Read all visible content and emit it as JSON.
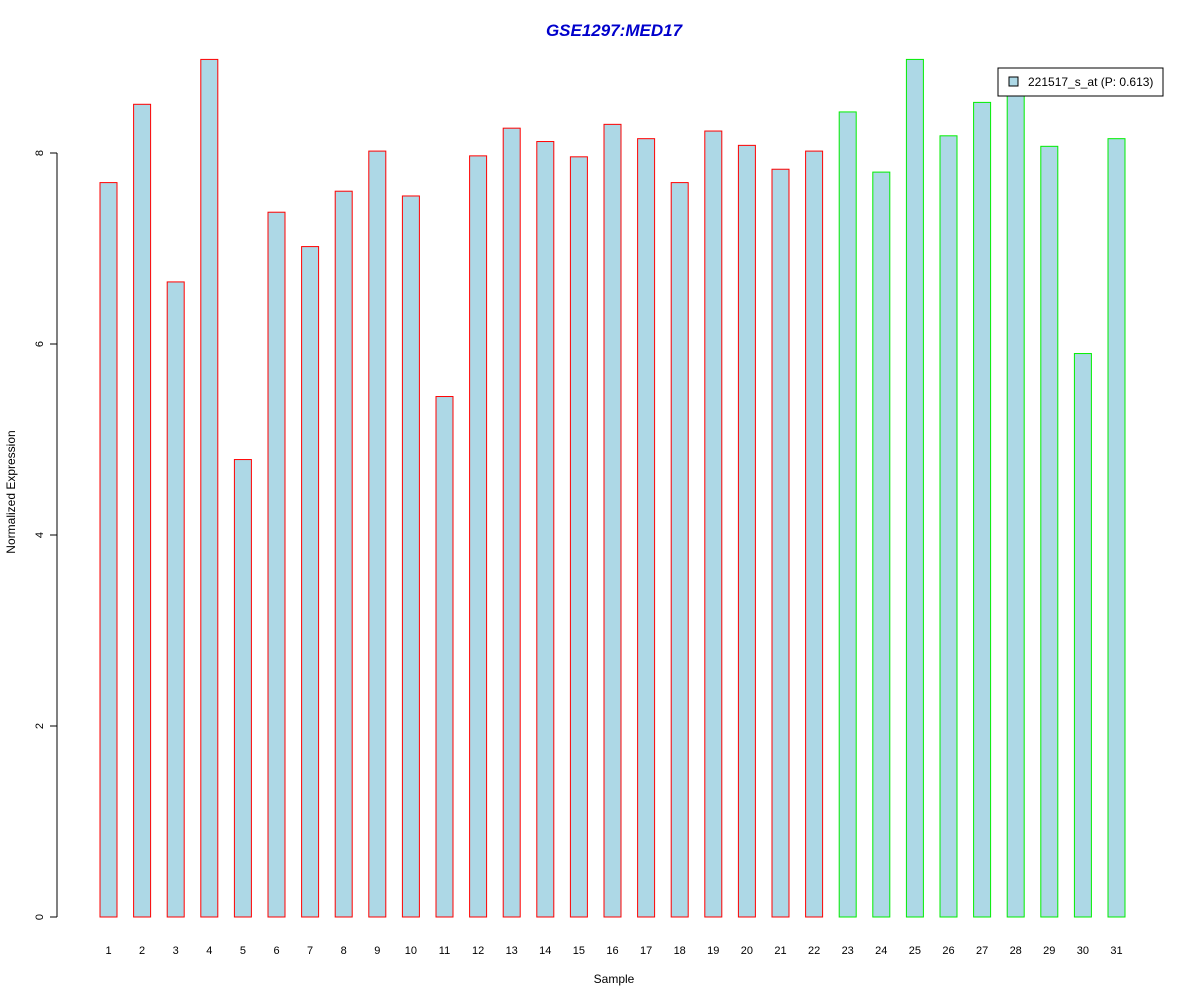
{
  "chart_data": {
    "type": "bar",
    "title": "GSE1297:MED17",
    "xlabel": "Sample",
    "ylabel": "Normalized Expression",
    "ylim": [
      0,
      9
    ],
    "yticks": [
      0,
      2,
      4,
      6,
      8
    ],
    "grid": false,
    "legend_position": "top-right",
    "categories": [
      "1",
      "2",
      "3",
      "4",
      "5",
      "6",
      "7",
      "8",
      "9",
      "10",
      "11",
      "12",
      "13",
      "14",
      "15",
      "16",
      "17",
      "18",
      "19",
      "20",
      "21",
      "22",
      "23",
      "24",
      "25",
      "26",
      "27",
      "28",
      "29",
      "30",
      "31"
    ],
    "series": [
      {
        "name": "221517_s_at (P: 0.613)",
        "values": [
          7.69,
          8.51,
          6.65,
          8.98,
          4.79,
          7.38,
          7.02,
          7.6,
          8.02,
          7.55,
          5.45,
          7.97,
          8.26,
          8.12,
          7.96,
          8.3,
          8.15,
          7.69,
          8.23,
          8.08,
          7.83,
          8.02,
          8.43,
          7.8,
          8.98,
          8.18,
          8.53,
          8.6,
          8.07,
          5.9,
          8.15
        ]
      }
    ],
    "groups": [
      {
        "samples": "1-22",
        "border_color": "#ff0000"
      },
      {
        "samples": "23-31",
        "border_color": "#00ee00"
      }
    ],
    "fill_color": "#add8e6",
    "title_color": "#0000cc"
  }
}
